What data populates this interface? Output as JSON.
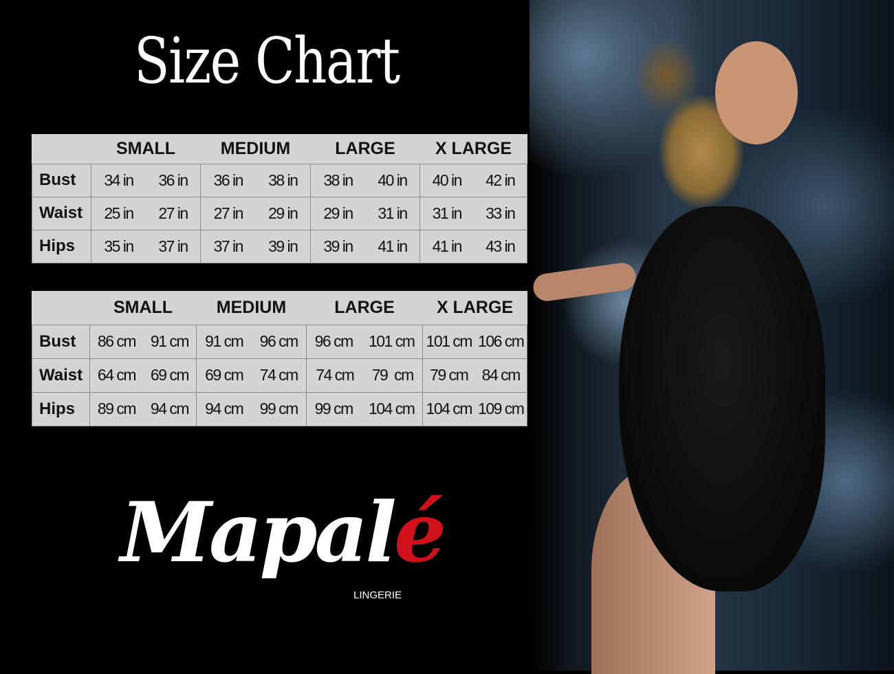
{
  "title": "Size Chart",
  "sizes": [
    "SMALL",
    "MEDIUM",
    "LARGE",
    "X LARGE"
  ],
  "inches": {
    "rows": [
      {
        "label": "Bust",
        "values": [
          "34 in",
          "36 in",
          "36 in",
          "38 in",
          "38 in",
          "40 in",
          "40 in",
          "42 in"
        ]
      },
      {
        "label": "Waist",
        "values": [
          "25 in",
          "27 in",
          "27 in",
          "29 in",
          "29 in",
          "31 in",
          "31 in",
          "33 in"
        ]
      },
      {
        "label": "Hips",
        "values": [
          "35 in",
          "37 in",
          "37 in",
          "39 in",
          "39 in",
          "41 in",
          "41 in",
          "43 in"
        ]
      }
    ]
  },
  "cm": {
    "rows": [
      {
        "label": "Bust",
        "values": [
          "86 cm",
          "91 cm",
          "91 cm",
          "96 cm",
          "96 cm",
          "101 cm",
          "101 cm",
          "106 cm"
        ]
      },
      {
        "label": "Waist",
        "values": [
          "64 cm",
          "69 cm",
          "69 cm",
          "74 cm",
          "74 cm",
          "79  cm",
          "79 cm",
          "84 cm"
        ]
      },
      {
        "label": "Hips",
        "values": [
          "89 cm",
          "94 cm",
          "94 cm",
          "99 cm",
          "99 cm",
          "104 cm",
          "104 cm",
          "109 cm"
        ]
      }
    ]
  },
  "logo": {
    "text_main": "Mapal",
    "text_accent": "é",
    "subtitle": "LINGERIE",
    "accent_color": "#d0101a"
  }
}
